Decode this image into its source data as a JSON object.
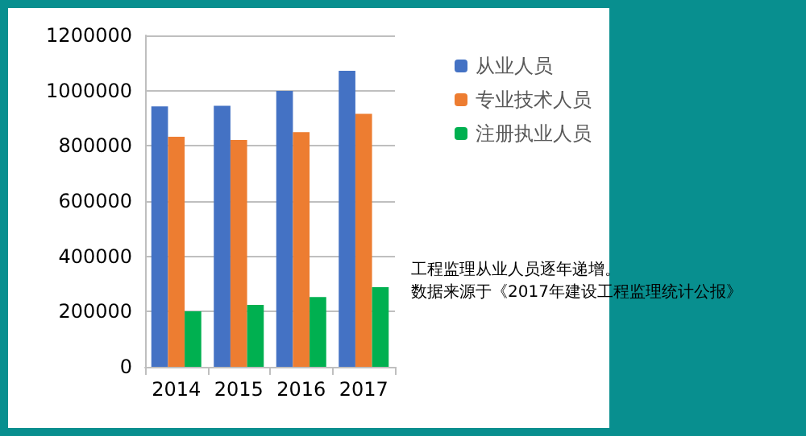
{
  "chart_data": {
    "type": "bar",
    "categories": [
      "2014",
      "2015",
      "2016",
      "2017"
    ],
    "series": [
      {
        "name": "从业人员",
        "color": "#4472c4",
        "values": [
          943000,
          945000,
          999000,
          1072000
        ]
      },
      {
        "name": "专业技术人员",
        "color": "#ed7d31",
        "values": [
          833000,
          821000,
          850000,
          916000
        ]
      },
      {
        "name": "注册执业人员",
        "color": "#00b050",
        "values": [
          201000,
          224000,
          253000,
          288000
        ]
      }
    ],
    "ylim": [
      0,
      1200000
    ],
    "yticks": [
      0,
      200000,
      400000,
      600000,
      800000,
      1000000,
      1200000
    ],
    "grid": "y",
    "legend": "right",
    "annotations": [
      "工程监理从业人员逐年递增。",
      "数据来源于《2017年建设工程监理统计公报》"
    ]
  }
}
